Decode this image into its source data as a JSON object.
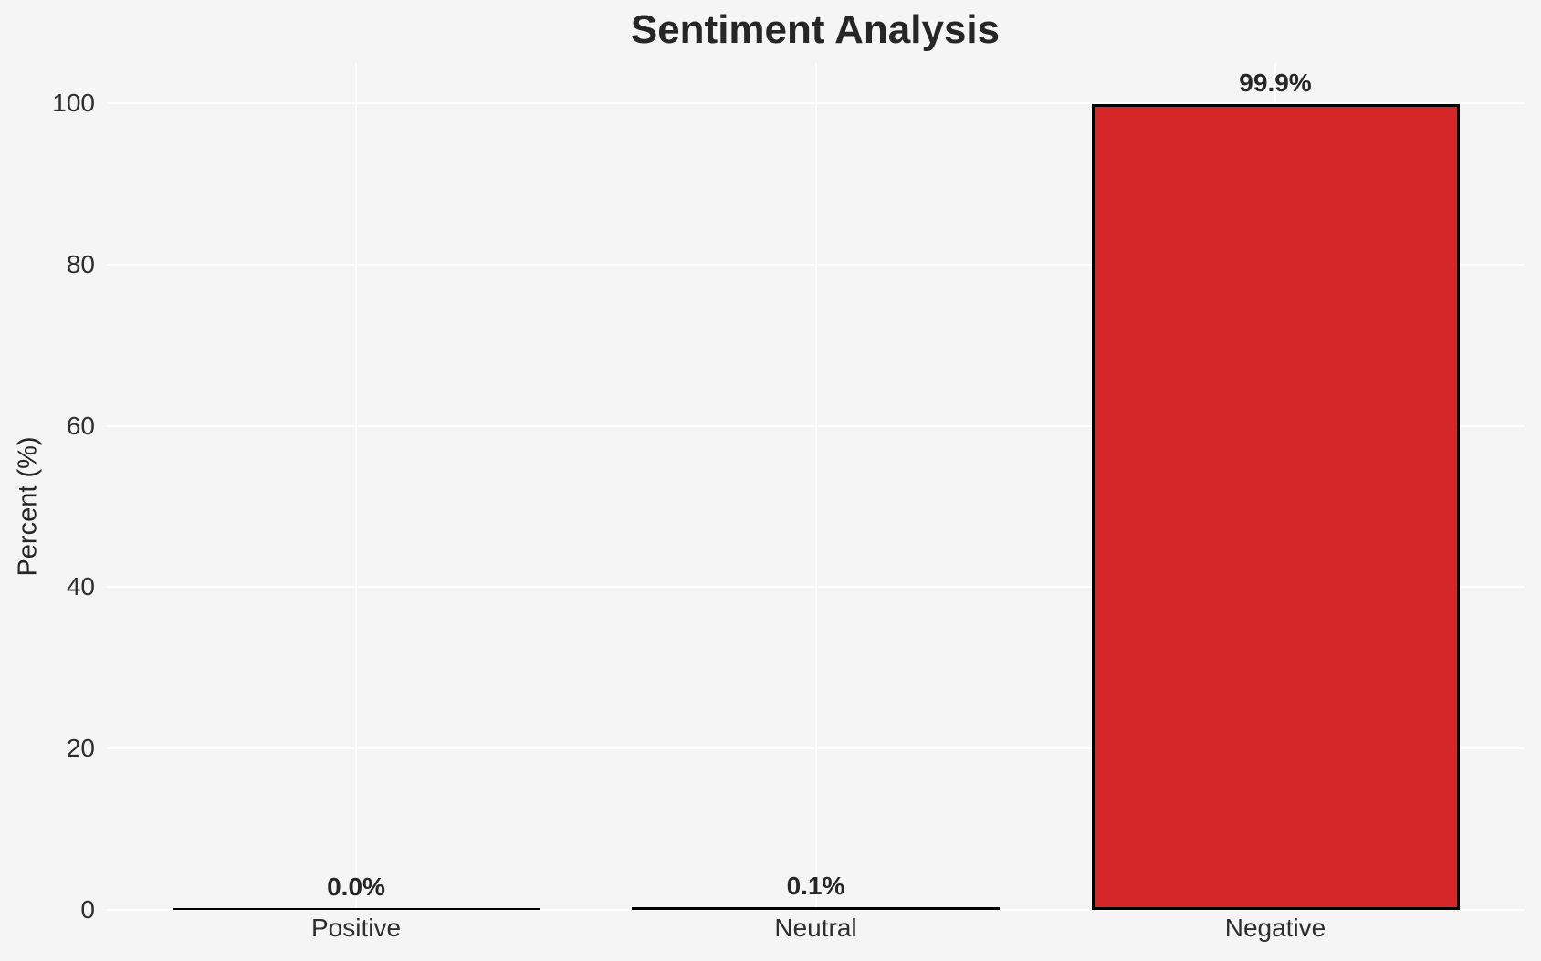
{
  "chart_data": {
    "type": "bar",
    "title": "Sentiment Analysis",
    "ylabel": "Percent (%)",
    "xlabel": "",
    "categories": [
      "Positive",
      "Neutral",
      "Negative"
    ],
    "values": [
      0.0,
      0.1,
      99.9
    ],
    "value_labels": [
      "0.0%",
      "0.1%",
      "99.9%"
    ],
    "yticks": [
      0,
      20,
      40,
      60,
      80,
      100
    ],
    "ylim": [
      0,
      105
    ],
    "grid": "on",
    "legend": "none",
    "colors": {
      "bar_fill": "#d62728",
      "bar_edge": "#000000",
      "background": "#f5f5f6",
      "gridline": "#ffffff",
      "text": "#262626",
      "tick_text": "#2e2e2e"
    }
  }
}
